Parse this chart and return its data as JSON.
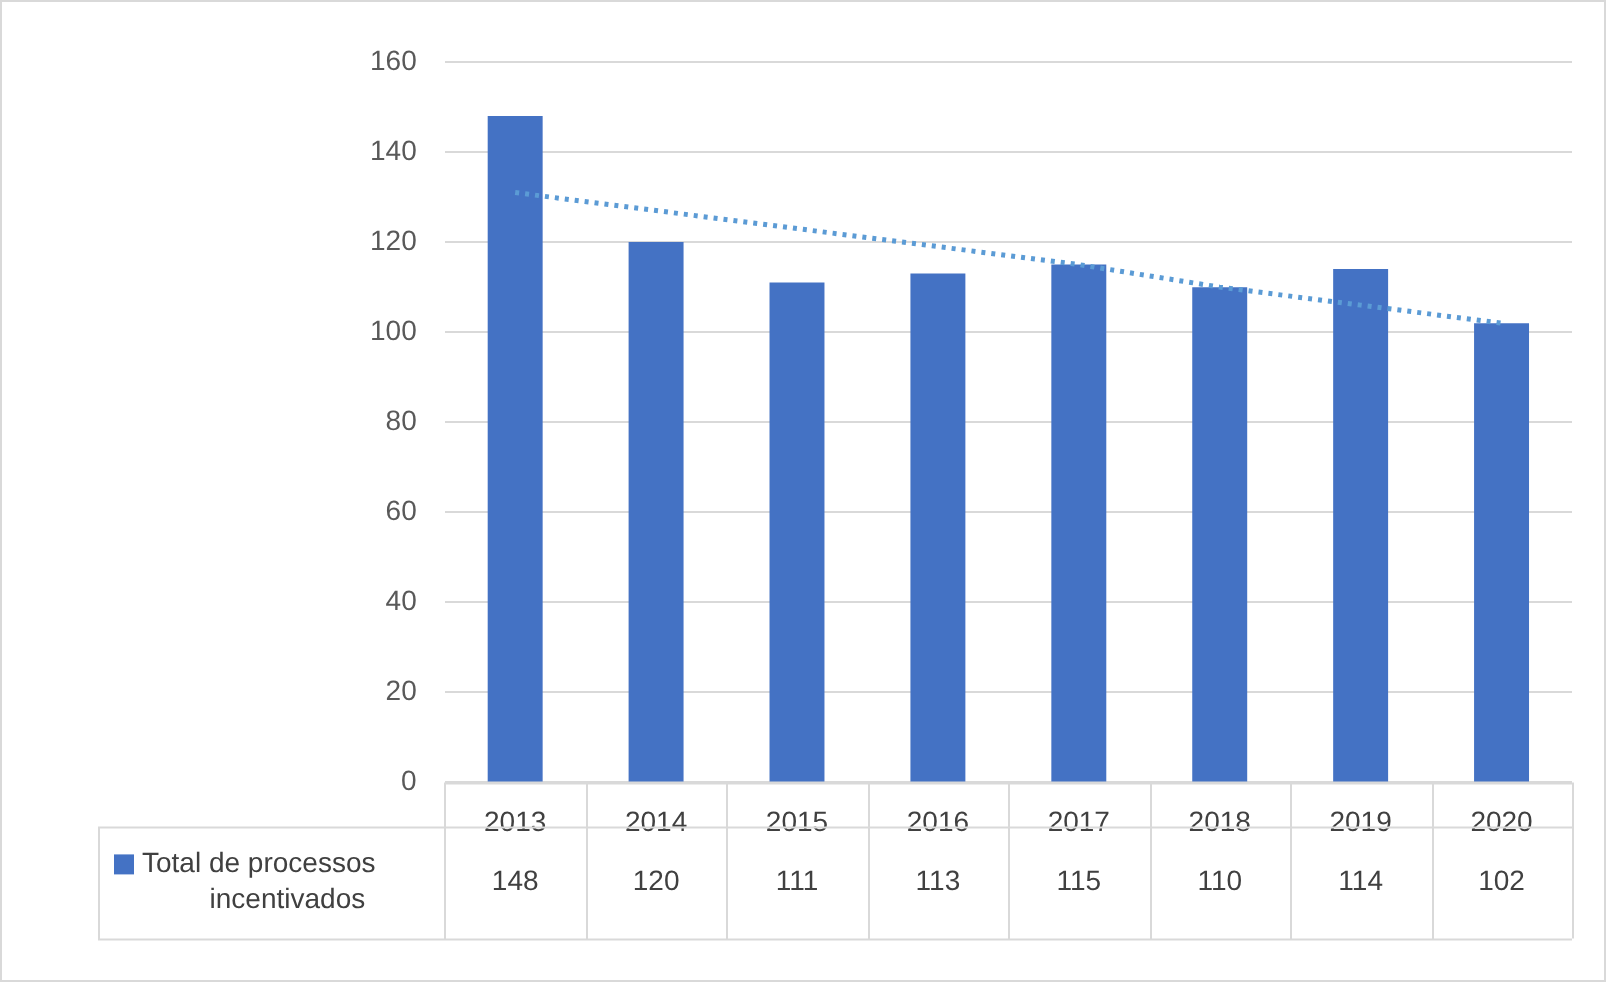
{
  "chart_data": {
    "type": "bar",
    "categories": [
      "2013",
      "2014",
      "2015",
      "2016",
      "2017",
      "2018",
      "2019",
      "2020"
    ],
    "series": [
      {
        "name": "Total de processos incentivados",
        "color": "#4472c4",
        "values": [
          148,
          120,
          111,
          113,
          115,
          110,
          114,
          102
        ],
        "value_labels": [
          "148",
          "120",
          "111",
          "113",
          "115",
          "110",
          "114",
          "102"
        ]
      },
      {
        "type": "line",
        "values": [
          131,
          127,
          123,
          119,
          115,
          110,
          106,
          102
        ],
        "color": "#5b9bd5",
        "line_style": "dotted",
        "marker": "none"
      }
    ],
    "ylim": [
      0,
      160
    ],
    "yticks": [
      0,
      20,
      40,
      60,
      80,
      100,
      120,
      140,
      160
    ],
    "grid": "y"
  }
}
